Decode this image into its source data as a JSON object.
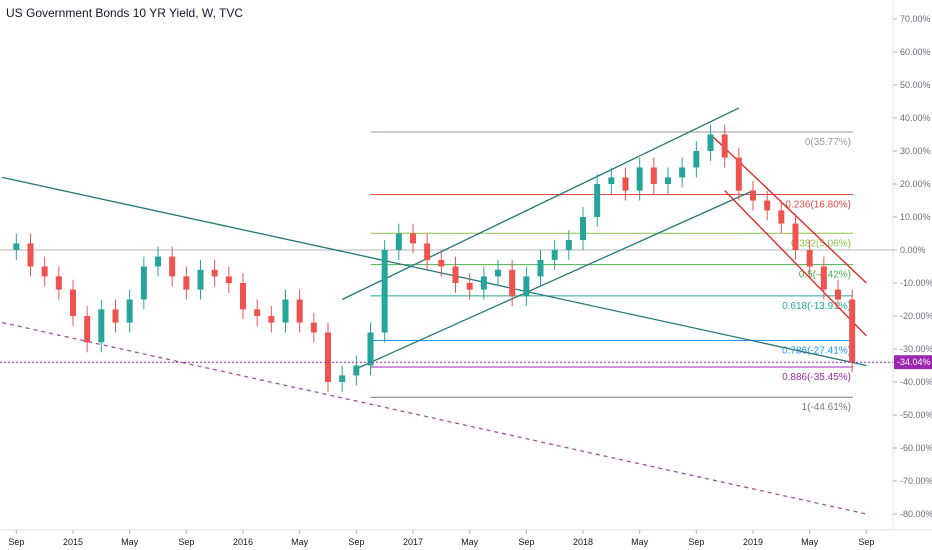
{
  "chart_data": {
    "type": "candlestick",
    "title": "US Government Bonds 10 YR Yield, W, TVC",
    "yunit": "%",
    "ylim": [
      -85,
      75
    ],
    "ticks_y": [
      "70.00%",
      "60.00%",
      "50.00%",
      "40.00%",
      "30.00%",
      "20.00%",
      "10.00%",
      "0.00%",
      "-10.00%",
      "-20.00%",
      "-30.00%",
      "-40.00%",
      "-50.00%",
      "-60.00%",
      "-70.00%",
      "-80.00%"
    ],
    "ticks_y_values": [
      70,
      60,
      50,
      40,
      30,
      20,
      10,
      0,
      -10,
      -20,
      -30,
      -40,
      -50,
      -60,
      -70,
      -80
    ],
    "ticks_x": [
      "Sep",
      "2015",
      "May",
      "Sep",
      "2016",
      "May",
      "Sep",
      "2017",
      "May",
      "Sep",
      "2018",
      "May",
      "Sep",
      "2019",
      "May",
      "Sep"
    ],
    "ticks_x_values": [
      "2014-09",
      "2015-01",
      "2015-05",
      "2015-09",
      "2016-01",
      "2016-05",
      "2016-09",
      "2017-01",
      "2017-05",
      "2017-09",
      "2018-01",
      "2018-05",
      "2018-09",
      "2019-01",
      "2019-05",
      "2019-09"
    ],
    "last_value_label": "-34.04%",
    "fib_levels": [
      {
        "label": "0(35.77%)",
        "value": 35.77,
        "color": "#9598a1"
      },
      {
        "label": "0.236(16.80%)",
        "value": 16.8,
        "color": "#e84b4b"
      },
      {
        "label": "0.382(5.06%)",
        "value": 5.06,
        "color": "#8bc34a"
      },
      {
        "label": "0.5(-4.42%)",
        "value": -4.42,
        "color": "#4caf50"
      },
      {
        "label": "0.618(-13.91%)",
        "value": -13.91,
        "color": "#26a69a"
      },
      {
        "label": "0.786(-27.41%)",
        "value": -27.41,
        "color": "#2196f3"
      },
      {
        "label": "0.886(-35.45%)",
        "value": -35.45,
        "color": "#9c27b0"
      },
      {
        "label": "1(-44.61%)",
        "value": -44.61,
        "color": "#787b86"
      }
    ],
    "baseline_value": 0,
    "series": [
      {
        "type": "close_path",
        "x": [
          "2014-08",
          "2014-09",
          "2014-10",
          "2014-11",
          "2014-12",
          "2015-01",
          "2015-02",
          "2015-03",
          "2015-04",
          "2015-05",
          "2015-06",
          "2015-07",
          "2015-08",
          "2015-09",
          "2015-10",
          "2015-11",
          "2015-12",
          "2016-01",
          "2016-02",
          "2016-03",
          "2016-04",
          "2016-05",
          "2016-06",
          "2016-07",
          "2016-08",
          "2016-09",
          "2016-10",
          "2016-11",
          "2016-12",
          "2017-01",
          "2017-02",
          "2017-03",
          "2017-04",
          "2017-05",
          "2017-06",
          "2017-07",
          "2017-08",
          "2017-09",
          "2017-10",
          "2017-11",
          "2017-12",
          "2018-01",
          "2018-02",
          "2018-03",
          "2018-04",
          "2018-05",
          "2018-06",
          "2018-07",
          "2018-08",
          "2018-09",
          "2018-10",
          "2018-11",
          "2018-12",
          "2019-01",
          "2019-02",
          "2019-03",
          "2019-04",
          "2019-05",
          "2019-06",
          "2019-07",
          "2019-08"
        ],
        "values": [
          0,
          2,
          -5,
          -8,
          -12,
          -20,
          -28,
          -18,
          -22,
          -15,
          -5,
          -2,
          -8,
          -12,
          -6,
          -8,
          -10,
          -18,
          -20,
          -22,
          -15,
          -22,
          -25,
          -40,
          -38,
          -35,
          -25,
          0,
          5,
          2,
          -3,
          -5,
          -10,
          -12,
          -8,
          -6,
          -14,
          -8,
          -3,
          0,
          3,
          10,
          20,
          22,
          18,
          25,
          20,
          22,
          25,
          30,
          35,
          28,
          18,
          15,
          12,
          8,
          0,
          -5,
          -12,
          -15,
          -34
        ]
      }
    ],
    "trendlines": [
      {
        "kind": "channel-upper",
        "from": [
          "2016-08",
          -15
        ],
        "to": [
          "2018-12",
          43
        ],
        "color": "#26777a"
      },
      {
        "kind": "channel-lower",
        "from": [
          "2016-09",
          -36
        ],
        "to": [
          "2019-01",
          18
        ],
        "color": "#26777a"
      },
      {
        "kind": "long-down",
        "from": [
          "2014-08",
          22
        ],
        "to": [
          "2019-09",
          -35
        ],
        "color": "#26777a"
      },
      {
        "kind": "red-channel-top",
        "from": [
          "2018-10",
          35
        ],
        "to": [
          "2019-09",
          -10
        ],
        "color": "#e41e1e"
      },
      {
        "kind": "red-channel-bottom",
        "from": [
          "2018-11",
          18
        ],
        "to": [
          "2019-09",
          -26
        ],
        "color": "#e41e1e"
      },
      {
        "kind": "dashed-support",
        "from": [
          "2014-08",
          -22
        ],
        "to": [
          "2019-09",
          -80
        ],
        "color": "#a0529a"
      }
    ]
  }
}
